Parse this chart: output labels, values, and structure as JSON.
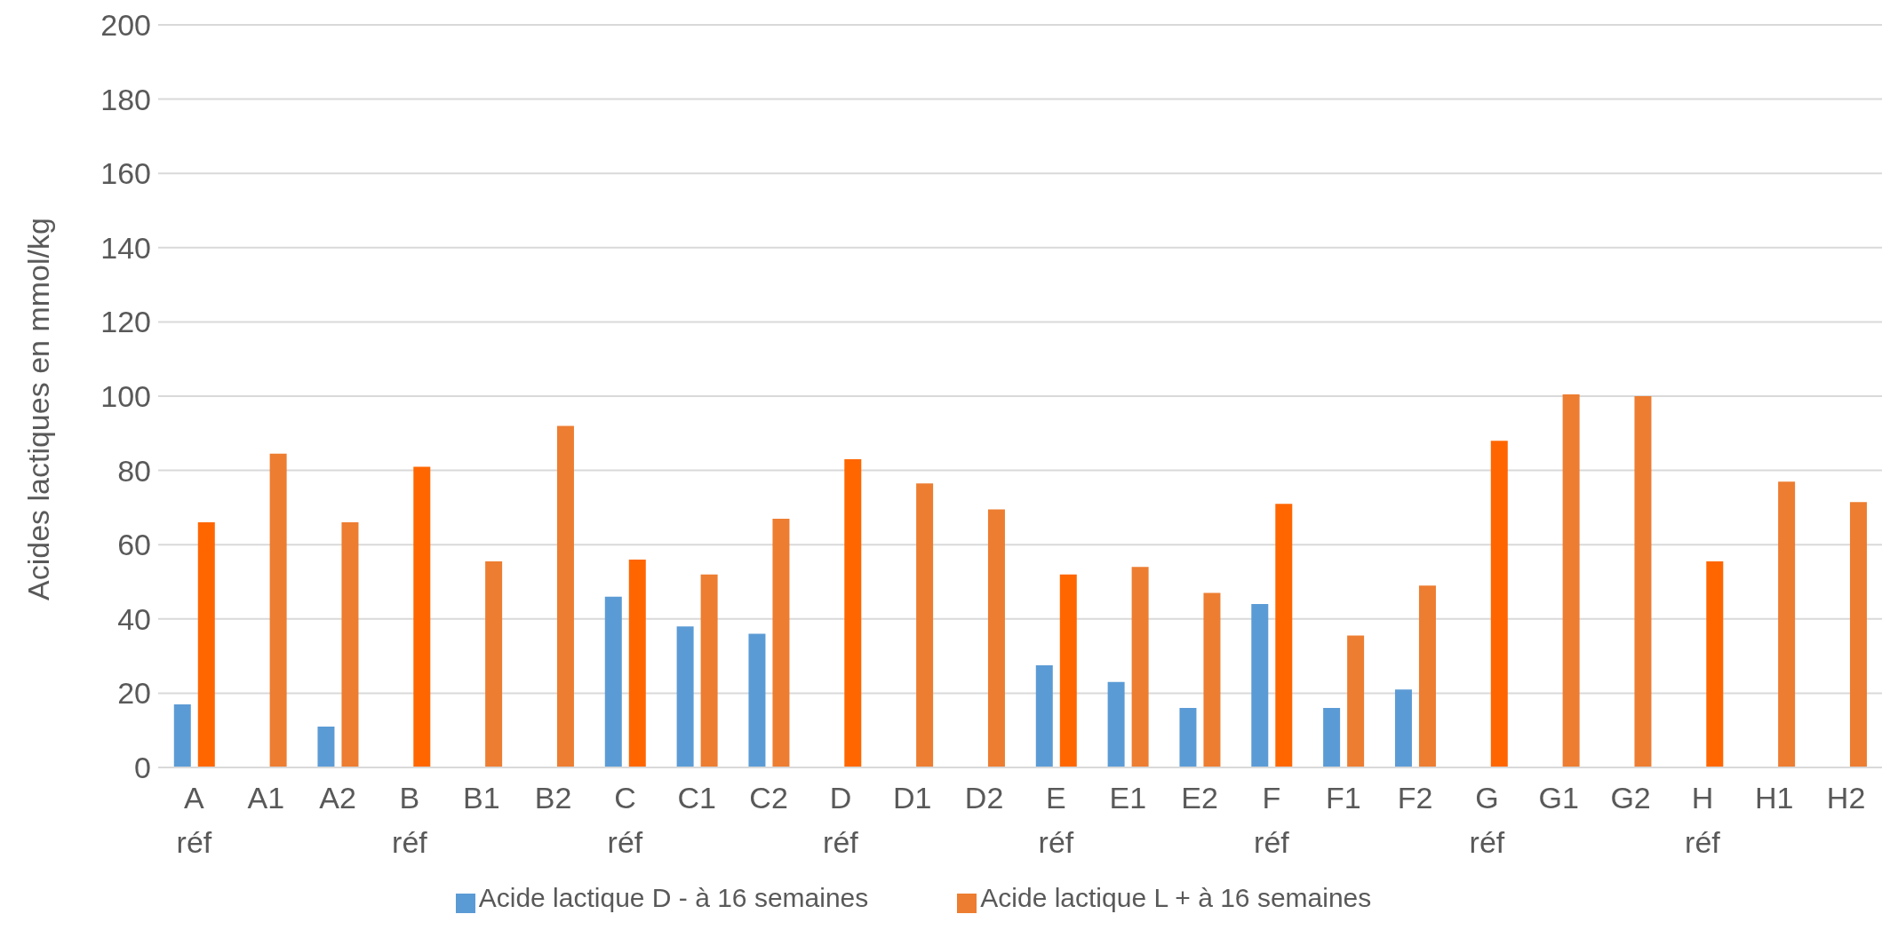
{
  "chart_data": {
    "type": "bar",
    "categories": [
      "A réf",
      "A1",
      "A2",
      "B réf",
      "B1",
      "B2",
      "C réf",
      "C1",
      "C2",
      "D réf",
      "D1",
      "D2",
      "E réf",
      "E1",
      "E2",
      "F réf",
      "F1",
      "F2",
      "G réf",
      "G1",
      "G2",
      "H réf",
      "H1",
      "H2"
    ],
    "ylabel": "Acides lactiques en mmol/kg",
    "series": [
      {
        "name": "Acide lactique D - à 16 semaines",
        "color": "#5b9bd5",
        "values": [
          17,
          null,
          11,
          null,
          null,
          null,
          46,
          38,
          36,
          null,
          null,
          null,
          27.5,
          23,
          16,
          44,
          16,
          21,
          null,
          null,
          null,
          null,
          null,
          null
        ]
      },
      {
        "name": "Acide lactique L + à 16 semaines",
        "color": "#ed7d31",
        "colors": [
          "#ff6600",
          "#ed7d31",
          "#ed7d31",
          "#ff6600",
          "#ed7d31",
          "#ed7d31",
          "#ff6600",
          "#ed7d31",
          "#ed7d31",
          "#ff6600",
          "#ed7d31",
          "#ed7d31",
          "#ff6600",
          "#ed7d31",
          "#ed7d31",
          "#ff6600",
          "#ed7d31",
          "#ed7d31",
          "#ff6600",
          "#ed7d31",
          "#ed7d31",
          "#ff6600",
          "#ed7d31",
          "#ed7d31"
        ],
        "values": [
          66,
          84.5,
          66,
          81,
          55.5,
          92,
          56,
          52,
          67,
          83,
          76.5,
          69.5,
          52,
          54,
          47,
          71,
          35.5,
          49,
          88,
          100.5,
          100,
          55.5,
          77,
          71.5
        ]
      }
    ],
    "ylim": [
      0,
      200
    ],
    "yticks": [
      0,
      20,
      40,
      60,
      80,
      100,
      120,
      140,
      160,
      180,
      200
    ],
    "grid": "y",
    "legend": "bottom"
  }
}
